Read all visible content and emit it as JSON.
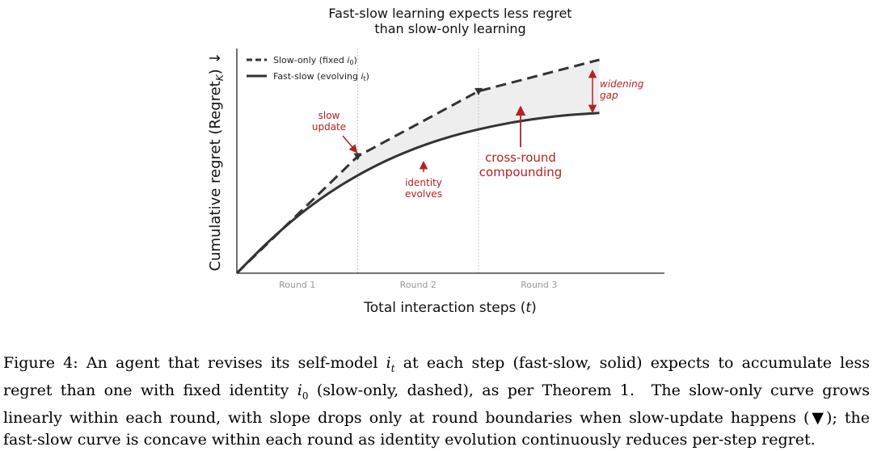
{
  "chart_data": {
    "type": "line",
    "title_lines": [
      "Fast-slow learning expects less regret",
      "than slow-only learning"
    ],
    "xlabel": "Total interaction steps (t)",
    "ylabel": "Cumulative regret (Regret",
    "ylabel_sub": "K",
    "ylabel_suffix": ") ↓",
    "xlim": [
      0,
      3.55
    ],
    "ylim": [
      0,
      1.0
    ],
    "round_boundaries": [
      1,
      2
    ],
    "round_labels": [
      {
        "x": 0.5,
        "text": "Round 1"
      },
      {
        "x": 1.5,
        "text": "Round 2"
      },
      {
        "x": 2.5,
        "text": "Round 3"
      }
    ],
    "series": [
      {
        "name": "Slow-only (fixed i",
        "name_sub": "0",
        "name_suffix": ")",
        "style": "dashed",
        "color": "#333333",
        "x": [
          0,
          1,
          2,
          3
        ],
        "y": [
          0,
          0.52,
          0.81,
          0.95
        ]
      },
      {
        "name": "Fast-slow (evolving i",
        "name_sub": "t",
        "name_suffix": ")",
        "style": "solid",
        "color": "#333333",
        "x": [
          0,
          0.25,
          0.5,
          0.75,
          1.0,
          1.25,
          1.5,
          1.75,
          2.0,
          2.25,
          2.5,
          2.75,
          3.0
        ],
        "y": [
          0,
          0.134,
          0.252,
          0.352,
          0.435,
          0.504,
          0.56,
          0.605,
          0.64,
          0.668,
          0.689,
          0.704,
          0.713
        ]
      }
    ],
    "legend_position": "top-left",
    "grid": false,
    "annotations": [
      {
        "id": "slow-update",
        "lines": [
          "slow",
          "update"
        ],
        "color": "#b22222"
      },
      {
        "id": "identity-evolves",
        "lines": [
          "identity",
          "evolves"
        ],
        "color": "#b22222"
      },
      {
        "id": "cross-round",
        "lines": [
          "cross-round",
          "compounding"
        ],
        "color": "#b22222"
      },
      {
        "id": "widening-gap",
        "lines": [
          "widening",
          "gap"
        ],
        "color": "#b22222"
      }
    ],
    "fill_color": "#eeeeee"
  },
  "caption": {
    "lines": [
      "Figure 4: An agent that revises its self-model i_t at each step (fast-slow, solid) expects to accumulate less",
      "regret than one with fixed identity i_0 (slow-only, dashed), as per Theorem 1. The slow-only curve grows",
      "linearly within each round, with slope drops only at round boundaries when slow-update happens (▼); the",
      "fast-slow curve is concave within each round as identity evolution continuously reduces per-step regret."
    ]
  }
}
